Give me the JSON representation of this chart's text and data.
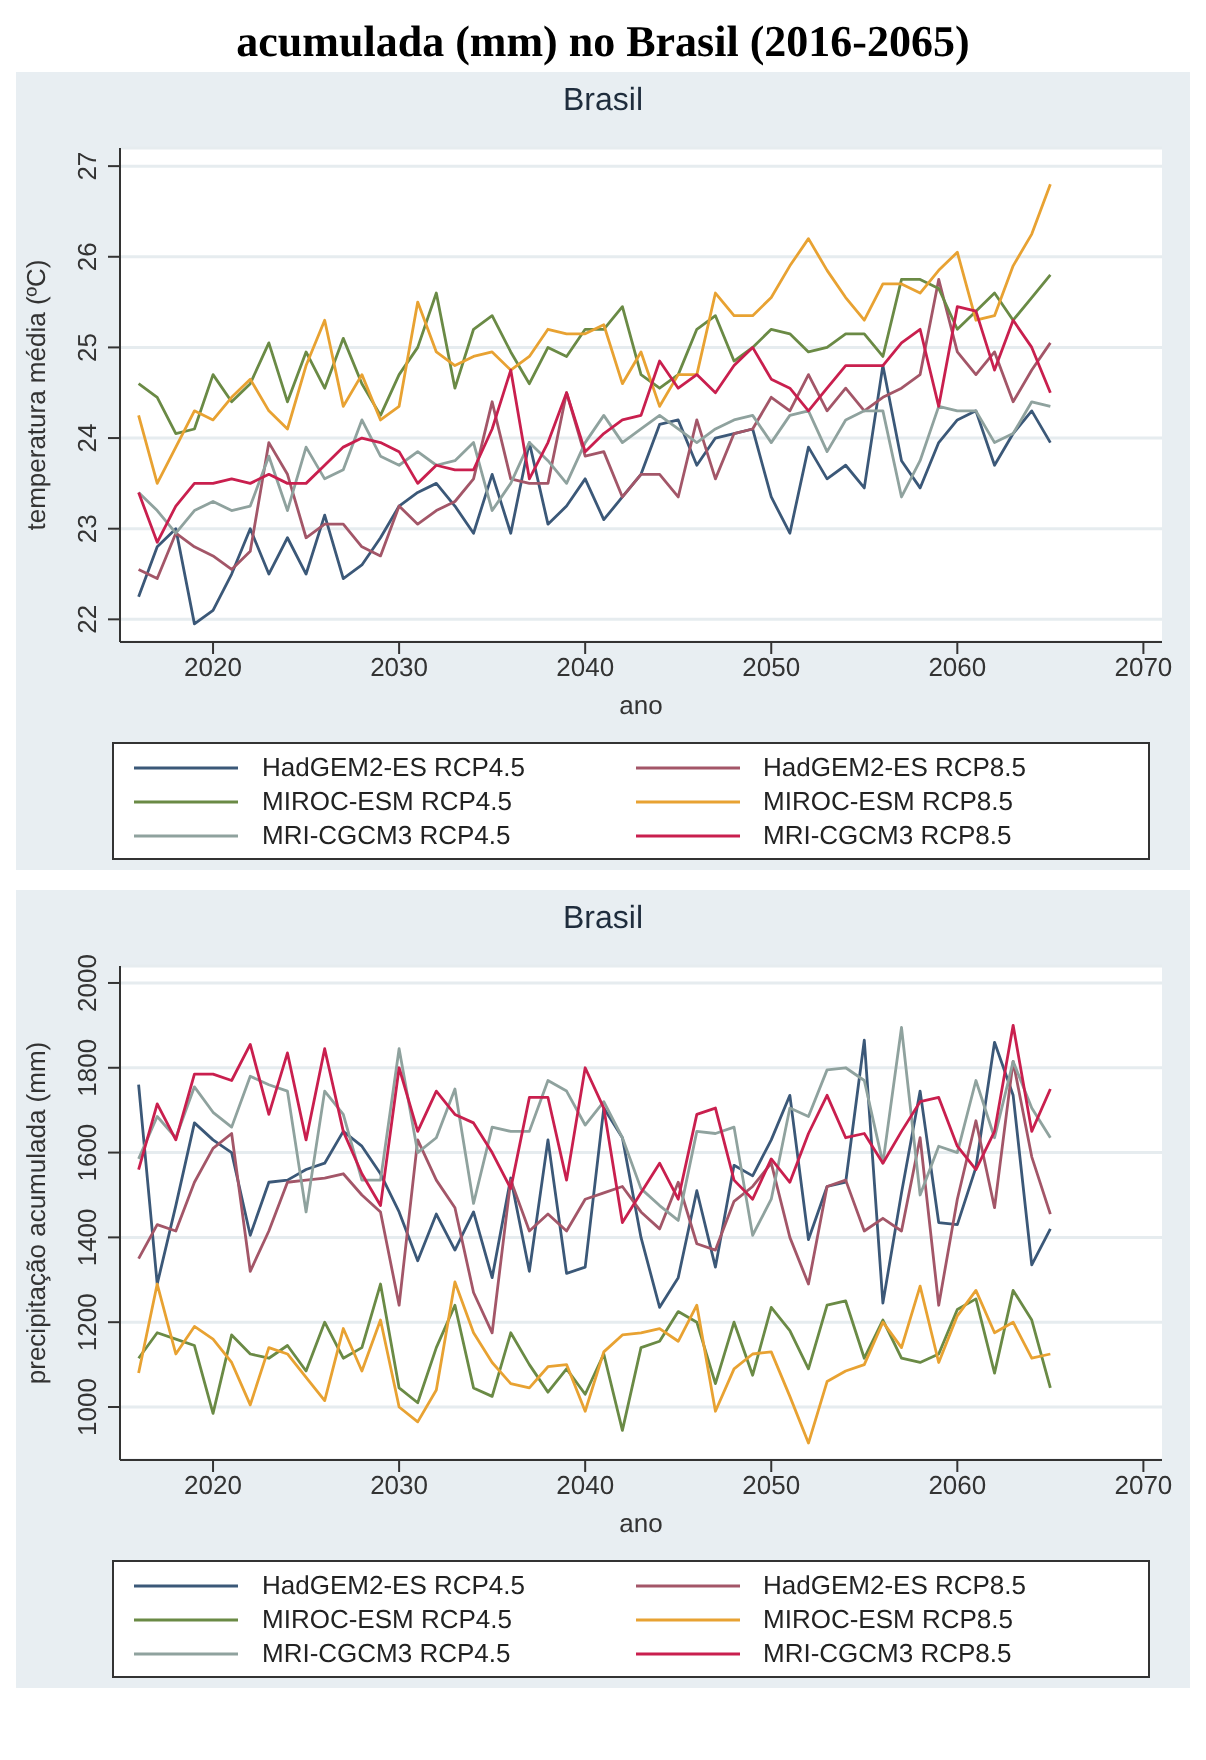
{
  "chart_data": [
    {
      "type": "line",
      "title": "Brasil",
      "annotations": [
        "acumulada (mm) no Brasil (2016-2065)"
      ],
      "xlabel": "ano",
      "ylabel": "temperatura média (ºC)",
      "x": [
        2016,
        2017,
        2018,
        2019,
        2020,
        2021,
        2022,
        2023,
        2024,
        2025,
        2026,
        2027,
        2028,
        2029,
        2030,
        2031,
        2032,
        2033,
        2034,
        2035,
        2036,
        2037,
        2038,
        2039,
        2040,
        2041,
        2042,
        2043,
        2044,
        2045,
        2046,
        2047,
        2048,
        2049,
        2050,
        2051,
        2052,
        2053,
        2054,
        2055,
        2056,
        2057,
        2058,
        2059,
        2060,
        2061,
        2062,
        2063,
        2064,
        2065
      ],
      "xlim": [
        2015,
        2071
      ],
      "xticks": [
        2020,
        2030,
        2040,
        2050,
        2060,
        2070
      ],
      "ylim": [
        21.75,
        27.2
      ],
      "yticks": [
        22,
        23,
        24,
        25,
        26,
        27
      ],
      "grid": "y",
      "legend": "bottom",
      "line_style": "solid",
      "series": [
        {
          "name": "HadGEM2-ES RCP4.5",
          "color": "#3b5878",
          "values": [
            22.25,
            22.8,
            23.0,
            21.95,
            22.1,
            22.5,
            23.0,
            22.5,
            22.9,
            22.5,
            23.15,
            22.45,
            22.6,
            22.9,
            23.25,
            23.4,
            23.5,
            23.25,
            22.95,
            23.6,
            22.95,
            23.95,
            23.05,
            23.25,
            23.55,
            23.1,
            23.35,
            23.6,
            24.15,
            24.2,
            23.7,
            24.0,
            24.05,
            24.1,
            23.35,
            22.95,
            23.9,
            23.55,
            23.7,
            23.45,
            24.8,
            23.75,
            23.45,
            23.95,
            24.2,
            24.3,
            23.7,
            24.05,
            24.3,
            23.95
          ]
        },
        {
          "name": "HadGEM2-ES RCP8.5",
          "color": "#a35668",
          "values": [
            22.55,
            22.45,
            22.95,
            22.8,
            22.7,
            22.55,
            22.75,
            23.95,
            23.6,
            22.9,
            23.05,
            23.05,
            22.8,
            22.7,
            23.25,
            23.05,
            23.2,
            23.3,
            23.55,
            24.4,
            23.55,
            23.5,
            23.5,
            24.5,
            23.8,
            23.85,
            23.35,
            23.6,
            23.6,
            23.35,
            24.2,
            23.55,
            24.05,
            24.1,
            24.45,
            24.3,
            24.7,
            24.3,
            24.55,
            24.3,
            24.45,
            24.55,
            24.7,
            25.75,
            24.95,
            24.7,
            24.95,
            24.4,
            24.75,
            25.05
          ]
        },
        {
          "name": "MIROC-ESM RCP4.5",
          "color": "#6a8a45",
          "values": [
            24.6,
            24.45,
            24.05,
            24.1,
            24.7,
            24.4,
            24.6,
            25.05,
            24.4,
            24.95,
            24.55,
            25.1,
            24.6,
            24.25,
            24.7,
            25.0,
            25.6,
            24.55,
            25.2,
            25.35,
            24.95,
            24.6,
            25.0,
            24.9,
            25.2,
            25.2,
            25.45,
            24.7,
            24.55,
            24.7,
            25.2,
            25.35,
            24.85,
            25.0,
            25.2,
            25.15,
            24.95,
            25.0,
            25.15,
            25.15,
            24.9,
            25.75,
            25.75,
            25.65,
            25.2,
            25.4,
            25.6,
            25.3,
            25.55,
            25.8
          ]
        },
        {
          "name": "MIROC-ESM RCP8.5",
          "color": "#e8a232",
          "values": [
            24.25,
            23.5,
            23.9,
            24.3,
            24.2,
            24.45,
            24.65,
            24.3,
            24.1,
            24.8,
            25.3,
            24.35,
            24.7,
            24.2,
            24.35,
            25.5,
            24.95,
            24.8,
            24.9,
            24.95,
            24.75,
            24.9,
            25.2,
            25.15,
            25.15,
            25.25,
            24.6,
            24.95,
            24.35,
            24.7,
            24.7,
            25.6,
            25.35,
            25.35,
            25.55,
            25.9,
            26.2,
            25.85,
            25.55,
            25.3,
            25.7,
            25.7,
            25.6,
            25.85,
            26.05,
            25.3,
            25.35,
            25.9,
            26.25,
            26.8
          ]
        },
        {
          "name": "MRI-CGCM3 RCP4.5",
          "color": "#8fa29e",
          "values": [
            23.4,
            23.2,
            22.95,
            23.2,
            23.3,
            23.2,
            23.25,
            23.8,
            23.2,
            23.9,
            23.55,
            23.65,
            24.2,
            23.8,
            23.7,
            23.85,
            23.7,
            23.75,
            23.95,
            23.2,
            23.5,
            23.95,
            23.75,
            23.5,
            23.95,
            24.25,
            23.95,
            24.1,
            24.25,
            24.1,
            23.95,
            24.1,
            24.2,
            24.25,
            23.95,
            24.25,
            24.3,
            23.85,
            24.2,
            24.3,
            24.3,
            23.35,
            23.75,
            24.35,
            24.3,
            24.3,
            23.95,
            24.05,
            24.4,
            24.35
          ]
        },
        {
          "name": "MRI-CGCM3 RCP8.5",
          "color": "#c91f4e",
          "values": [
            23.4,
            22.85,
            23.25,
            23.5,
            23.5,
            23.55,
            23.5,
            23.6,
            23.5,
            23.5,
            23.7,
            23.9,
            24.0,
            23.95,
            23.85,
            23.5,
            23.7,
            23.65,
            23.65,
            24.1,
            24.75,
            23.55,
            23.95,
            24.5,
            23.85,
            24.05,
            24.2,
            24.25,
            24.85,
            24.55,
            24.7,
            24.5,
            24.8,
            25.0,
            24.65,
            24.55,
            24.3,
            24.55,
            24.8,
            24.8,
            24.8,
            25.05,
            25.2,
            24.35,
            25.45,
            25.4,
            24.75,
            25.3,
            25.0,
            24.5
          ]
        }
      ]
    },
    {
      "type": "line",
      "title": "Brasil",
      "xlabel": "ano",
      "ylabel": "precipitação acumulada (mm)",
      "x": [
        2016,
        2017,
        2018,
        2019,
        2020,
        2021,
        2022,
        2023,
        2024,
        2025,
        2026,
        2027,
        2028,
        2029,
        2030,
        2031,
        2032,
        2033,
        2034,
        2035,
        2036,
        2037,
        2038,
        2039,
        2040,
        2041,
        2042,
        2043,
        2044,
        2045,
        2046,
        2047,
        2048,
        2049,
        2050,
        2051,
        2052,
        2053,
        2054,
        2055,
        2056,
        2057,
        2058,
        2059,
        2060,
        2061,
        2062,
        2063,
        2064,
        2065
      ],
      "xlim": [
        2015,
        2071
      ],
      "xticks": [
        2020,
        2030,
        2040,
        2050,
        2060,
        2070
      ],
      "ylim": [
        875,
        2040
      ],
      "yticks": [
        1000,
        1200,
        1400,
        1600,
        1800,
        2000
      ],
      "grid": "y",
      "legend": "bottom",
      "line_style": "solid",
      "series": [
        {
          "name": "HadGEM2-ES  RCP4.5",
          "color": "#3b5878",
          "values": [
            1760,
            1290,
            1475,
            1670,
            1630,
            1600,
            1405,
            1530,
            1535,
            1560,
            1575,
            1650,
            1615,
            1550,
            1460,
            1345,
            1455,
            1370,
            1460,
            1305,
            1540,
            1320,
            1630,
            1315,
            1330,
            1705,
            1635,
            1400,
            1235,
            1305,
            1510,
            1330,
            1570,
            1545,
            1630,
            1735,
            1395,
            1520,
            1530,
            1865,
            1245,
            1505,
            1745,
            1435,
            1430,
            1565,
            1860,
            1735,
            1335,
            1420
          ]
        },
        {
          "name": "HadGEM2-ES  RCP8.5",
          "color": "#a35668",
          "values": [
            1350,
            1430,
            1415,
            1530,
            1610,
            1645,
            1320,
            1415,
            1530,
            1535,
            1540,
            1550,
            1500,
            1460,
            1240,
            1630,
            1535,
            1470,
            1270,
            1175,
            1535,
            1415,
            1455,
            1415,
            1490,
            1505,
            1520,
            1460,
            1420,
            1530,
            1385,
            1370,
            1485,
            1520,
            1575,
            1400,
            1290,
            1520,
            1535,
            1415,
            1445,
            1415,
            1635,
            1240,
            1490,
            1675,
            1470,
            1815,
            1590,
            1455
          ]
        },
        {
          "name": "MIROC-ESM RCP4.5",
          "color": "#6a8a45",
          "values": [
            1115,
            1175,
            1160,
            1145,
            985,
            1170,
            1125,
            1115,
            1145,
            1085,
            1200,
            1115,
            1140,
            1290,
            1045,
            1010,
            1140,
            1240,
            1045,
            1025,
            1175,
            1100,
            1035,
            1090,
            1030,
            1125,
            945,
            1140,
            1155,
            1225,
            1200,
            1055,
            1200,
            1075,
            1235,
            1180,
            1090,
            1240,
            1250,
            1115,
            1205,
            1115,
            1105,
            1125,
            1230,
            1255,
            1080,
            1275,
            1205,
            1045
          ]
        },
        {
          "name": "MIROC-ESM RCP8.5",
          "color": "#e8a232",
          "values": [
            1080,
            1290,
            1125,
            1190,
            1160,
            1105,
            1005,
            1140,
            1125,
            1070,
            1015,
            1185,
            1085,
            1205,
            1000,
            965,
            1040,
            1295,
            1175,
            1105,
            1055,
            1045,
            1095,
            1100,
            990,
            1130,
            1170,
            1175,
            1185,
            1155,
            1240,
            990,
            1090,
            1125,
            1130,
            1025,
            915,
            1060,
            1085,
            1100,
            1200,
            1140,
            1285,
            1105,
            1215,
            1275,
            1175,
            1200,
            1115,
            1125
          ]
        },
        {
          "name": "MRI-CGCM3 RCP4.5",
          "color": "#8fa29e",
          "values": [
            1585,
            1685,
            1635,
            1755,
            1695,
            1660,
            1780,
            1760,
            1745,
            1460,
            1745,
            1690,
            1535,
            1535,
            1845,
            1600,
            1635,
            1750,
            1480,
            1660,
            1650,
            1650,
            1770,
            1745,
            1665,
            1720,
            1635,
            1515,
            1475,
            1440,
            1650,
            1645,
            1660,
            1405,
            1490,
            1705,
            1685,
            1795,
            1800,
            1770,
            1575,
            1895,
            1500,
            1615,
            1600,
            1770,
            1635,
            1815,
            1705,
            1635
          ]
        },
        {
          "name": "MRI-CGCM3 RCP8.5",
          "color": "#c91f4e",
          "values": [
            1560,
            1715,
            1630,
            1785,
            1785,
            1770,
            1855,
            1690,
            1835,
            1630,
            1845,
            1650,
            1550,
            1475,
            1800,
            1650,
            1745,
            1690,
            1670,
            1600,
            1515,
            1730,
            1730,
            1535,
            1800,
            1705,
            1435,
            1505,
            1575,
            1490,
            1690,
            1705,
            1535,
            1490,
            1585,
            1530,
            1645,
            1735,
            1635,
            1645,
            1575,
            1650,
            1720,
            1730,
            1615,
            1560,
            1650,
            1900,
            1650,
            1750
          ]
        }
      ]
    }
  ]
}
